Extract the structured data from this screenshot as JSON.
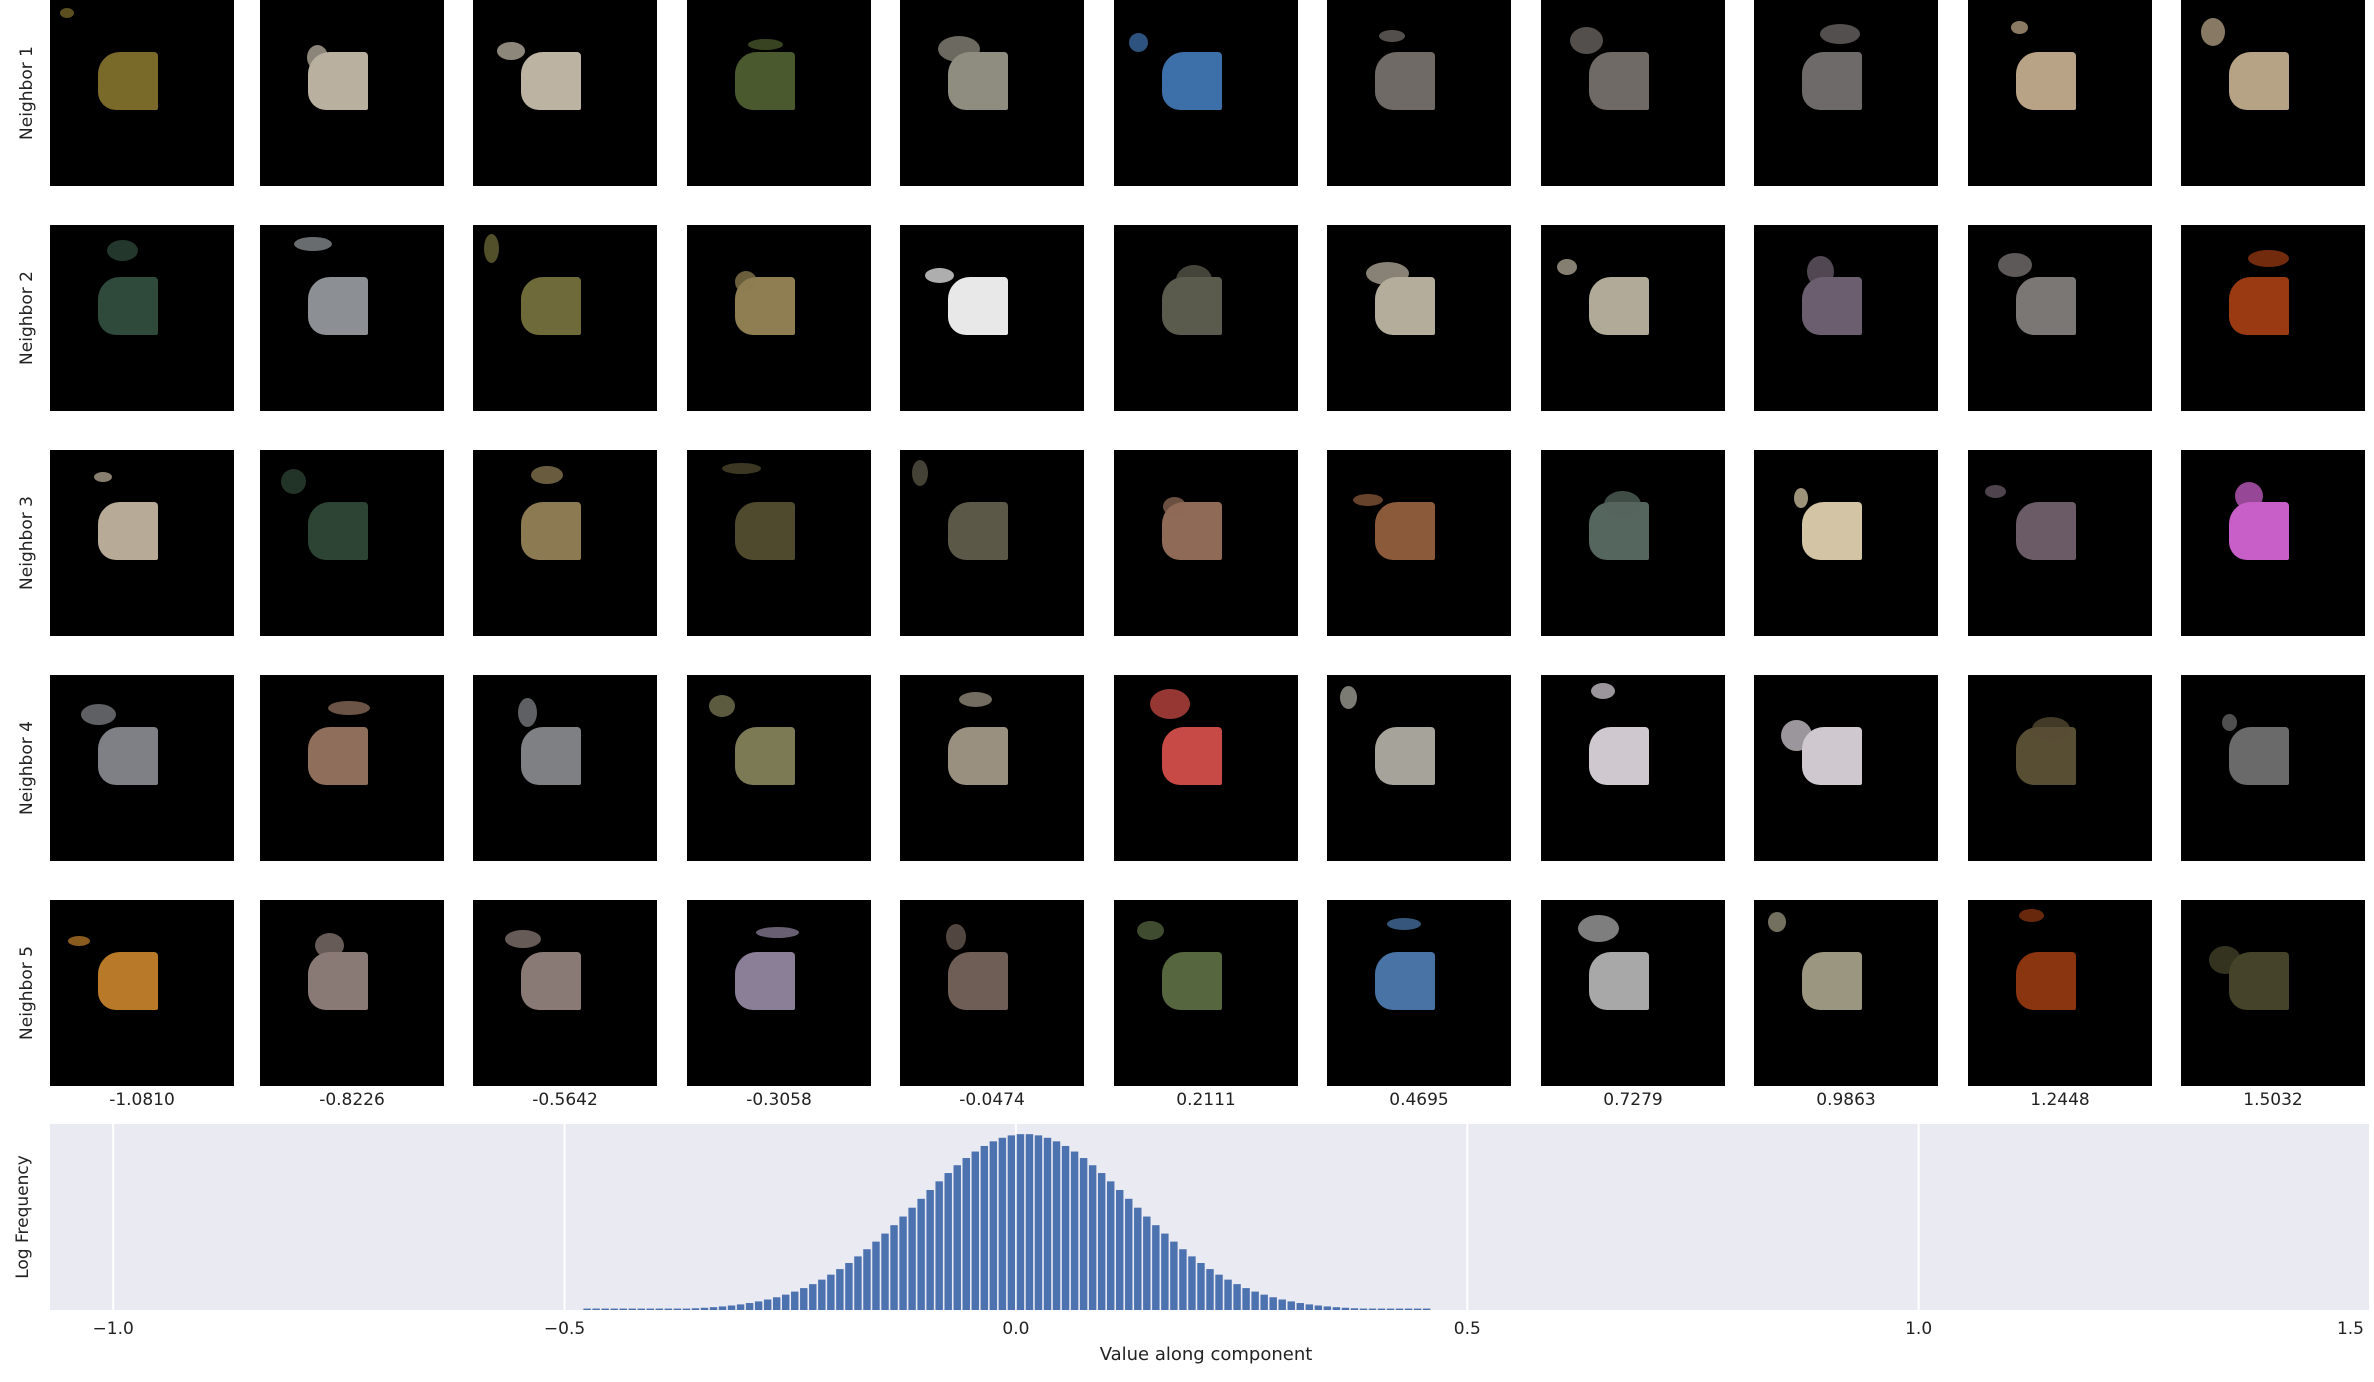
{
  "figure": {
    "row_labels": [
      "Neighbor 1",
      "Neighbor 2",
      "Neighbor 3",
      "Neighbor 4",
      "Neighbor 5"
    ],
    "column_values": [
      "-1.0810",
      "-0.8226",
      "-0.5642",
      "-0.3058",
      "-0.0474",
      "0.2111",
      "0.4695",
      "0.7279",
      "0.9863",
      "1.2448",
      "1.5032"
    ],
    "tile_colors": [
      [
        "#7a6a2a",
        "#b9b0a0",
        "#bcb3a3",
        "#4b5a2e",
        "#8f8c80",
        "#3d6fa8",
        "#6f6a66",
        "#6f6a66",
        "#6f6a6a",
        "#b8a386",
        "#b6a285"
      ],
      [
        "#2f4a3b",
        "#8c9094",
        "#6e6a3a",
        "#8e7e52",
        "#e8e8e8",
        "#5b5b4d",
        "#b4ad9c",
        "#b1aa98",
        "#6b5f6f",
        "#7b7775",
        "#9a3a12"
      ],
      [
        "#b7aa96",
        "#2d4434",
        "#8c7a52",
        "#4f4a2e",
        "#5b5848",
        "#8f6a56",
        "#8a5a3a",
        "#55665e",
        "#d2c4a4",
        "#6a5b67",
        "#c85fc8"
      ],
      [
        "#7f8086",
        "#8f6f5c",
        "#7f8084",
        "#7b7a55",
        "#9a9080",
        "#c84a46",
        "#a6a49a",
        "#cfc8cf",
        "#cfc8cf",
        "#584e34",
        "#6a6a6a"
      ],
      [
        "#b87a28",
        "#8a7a76",
        "#8a7a76",
        "#8b7f98",
        "#6e5e56",
        "#56663f",
        "#4873a4",
        "#a8a8a8",
        "#9a9680",
        "#8a3510",
        "#45442a"
      ]
    ]
  },
  "chart_data": {
    "type": "bar",
    "xlabel": "Value along component",
    "ylabel": "Log Frequency",
    "xlim": [
      -1.07,
      1.5
    ],
    "x_ticks": [
      -1.0,
      -0.5,
      0.0,
      0.5,
      1.0,
      1.5
    ],
    "x_tick_labels": [
      "−1.0",
      "−0.5",
      "0.0",
      "0.5",
      "1.0",
      "1.5"
    ],
    "grid": true,
    "bar_color": "#4c72b0",
    "background_color": "#eaeaf2",
    "bin_range": [
      -0.48,
      0.46
    ],
    "bin_count": 94,
    "peak_x": 0.01,
    "log_frequency_relative": {
      "description_free_params": true,
      "sigma": 0.12
    }
  }
}
